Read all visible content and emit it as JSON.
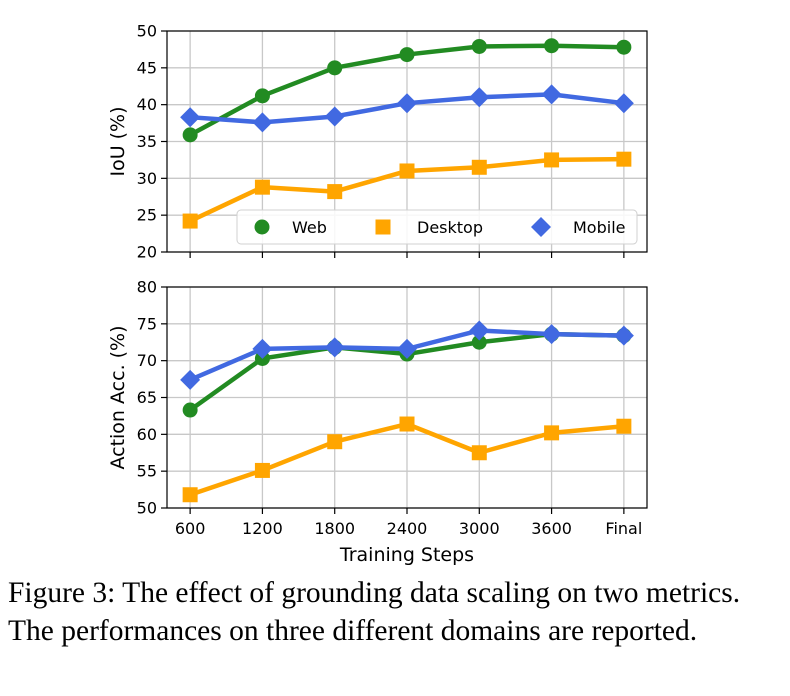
{
  "caption": "Figure 3: The effect of grounding data scaling on two metrics. The performances on three different domains are reported.",
  "colors": {
    "web": "#228B22",
    "desktop": "#FFA500",
    "mobile": "#4169E1",
    "grid": "#c8c8c8"
  },
  "chart_data": [
    {
      "type": "line",
      "ylabel": "IoU (%)",
      "xlabel": "",
      "categories": [
        "600",
        "1200",
        "1800",
        "2400",
        "3000",
        "3600",
        "Final"
      ],
      "ylim": [
        20,
        50
      ],
      "yticks": [
        20,
        25,
        30,
        35,
        40,
        45,
        50
      ],
      "grid": true,
      "legend": {
        "placement": "lower-right",
        "layout": "horizontal"
      },
      "series": [
        {
          "name": "Web",
          "color": "#228B22",
          "marker": "circle",
          "values": [
            35.9,
            41.2,
            45.0,
            46.8,
            47.9,
            48.0,
            47.8
          ]
        },
        {
          "name": "Desktop",
          "color": "#FFA500",
          "marker": "square",
          "values": [
            24.2,
            28.8,
            28.2,
            31.0,
            31.5,
            32.5,
            32.6
          ]
        },
        {
          "name": "Mobile",
          "color": "#4169E1",
          "marker": "diamond",
          "values": [
            38.3,
            37.6,
            38.4,
            40.2,
            41.0,
            41.4,
            40.2
          ]
        }
      ]
    },
    {
      "type": "line",
      "ylabel": "Action Acc. (%)",
      "xlabel": "Training Steps",
      "categories": [
        "600",
        "1200",
        "1800",
        "2400",
        "3000",
        "3600",
        "Final"
      ],
      "ylim": [
        50,
        80
      ],
      "yticks": [
        50,
        55,
        60,
        65,
        70,
        75,
        80
      ],
      "grid": true,
      "series": [
        {
          "name": "Web",
          "color": "#228B22",
          "marker": "circle",
          "values": [
            63.3,
            70.3,
            71.8,
            70.9,
            72.5,
            73.6,
            73.4
          ]
        },
        {
          "name": "Desktop",
          "color": "#FFA500",
          "marker": "square",
          "values": [
            51.8,
            55.1,
            59.0,
            61.4,
            57.5,
            60.2,
            61.1
          ]
        },
        {
          "name": "Mobile",
          "color": "#4169E1",
          "marker": "diamond",
          "values": [
            67.4,
            71.6,
            71.8,
            71.6,
            74.1,
            73.6,
            73.4
          ]
        }
      ]
    }
  ]
}
